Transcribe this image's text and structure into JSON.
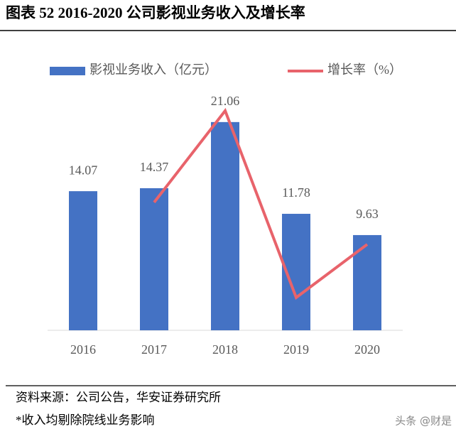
{
  "header": {
    "title": "图表 52   2016-2020 公司影视业务收入及增长率"
  },
  "chart_data": {
    "type": "bar",
    "categories": [
      "2016",
      "2017",
      "2018",
      "2019",
      "2020"
    ],
    "series": [
      {
        "name": "影视业务收入（亿元）",
        "type": "bar",
        "color": "#4472c4",
        "values": [
          14.07,
          14.37,
          21.06,
          11.78,
          9.63
        ]
      },
      {
        "name": "增长率（%）",
        "type": "line",
        "color": "#e8636b",
        "axis": "y2",
        "values": [
          null,
          2.1,
          46.6,
          -44.1,
          -18.3
        ]
      }
    ],
    "ylim": [
      0,
      25
    ],
    "y2lim": [
      -60,
      60
    ],
    "legend": "top"
  },
  "footer": {
    "source": "资料来源：公司公告，华安证券研究所",
    "note": "*收入均剔除院线业务影响",
    "watermark": "头条 @财是"
  }
}
